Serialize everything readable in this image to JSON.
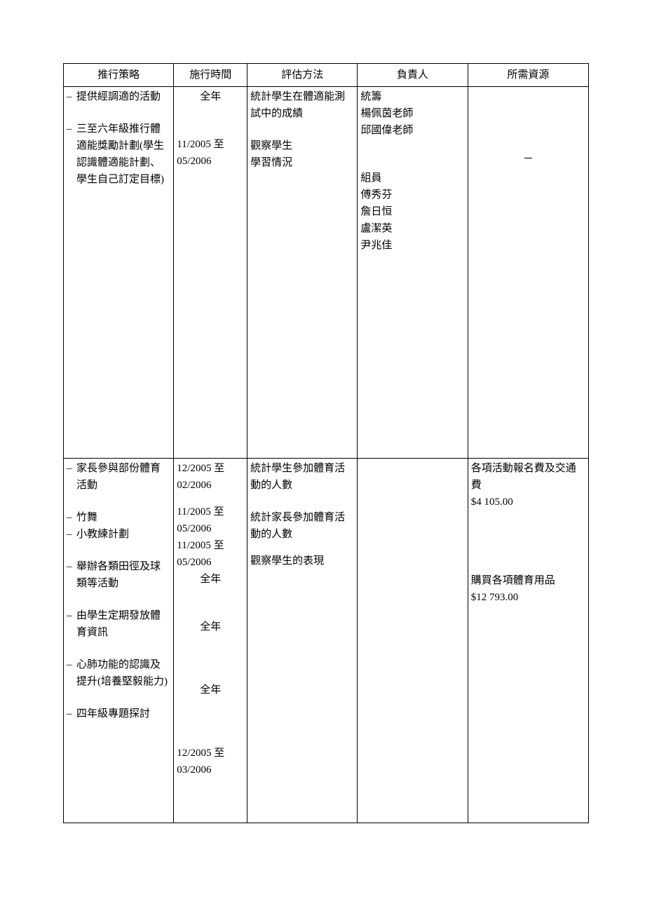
{
  "table": {
    "headers": {
      "strategy": "推行策略",
      "time": "施行時間",
      "eval": "評估方法",
      "person": "負責人",
      "resource": "所需資源"
    },
    "row1": {
      "strategy": {
        "item1": "提供經調適的活動",
        "item2": "三至六年級推行體適能獎勵計劃(學生認識體適能計劃、 學生自己訂定目標)"
      },
      "time": {
        "t1": "全年",
        "t2": "11/2005 至 05/2006"
      },
      "eval": {
        "e1": "統計學生在體適能測試中的成績",
        "e2": "觀察學生",
        "e3": "學習情況"
      },
      "person": {
        "p1": "統籌",
        "p2": "楊佩茵老師",
        "p3": "邱國偉老師",
        "p4": "組員",
        "p5": "傅秀芬",
        "p6": "詹日恒",
        "p7": "盧潔英",
        "p8": "尹兆佳"
      },
      "resource": {
        "r1": "─"
      }
    },
    "row2": {
      "strategy": {
        "item1": "家長參與部份體育活動",
        "item2": "竹舞",
        "item3": "小教練計劃",
        "item4": "舉辦各類田徑及球類等活動",
        "item5": "由學生定期發放體育資訊",
        "item6": "心肺功能的認識及提升(培養堅毅能力)",
        "item7": "四年級專題探討"
      },
      "time": {
        "t1": "12/2005 至 02/2006",
        "t2": "11/2005 至 05/2006",
        "t3": "11/2005 至 05/2006",
        "t4": "全年",
        "t5": "全年",
        "t6": "全年",
        "t7": "12/2005 至 03/2006"
      },
      "eval": {
        "e1": "統計學生參加體育活動的人數",
        "e2": "統計家長參加體育活動的人數",
        "e3": "觀察學生的表現"
      },
      "resource": {
        "r1": "各項活動報名費及交通費",
        "r2": "$4 105.00",
        "r3": "購買各項體育用品",
        "r4": "$12 793.00"
      }
    },
    "bullet": "–"
  }
}
